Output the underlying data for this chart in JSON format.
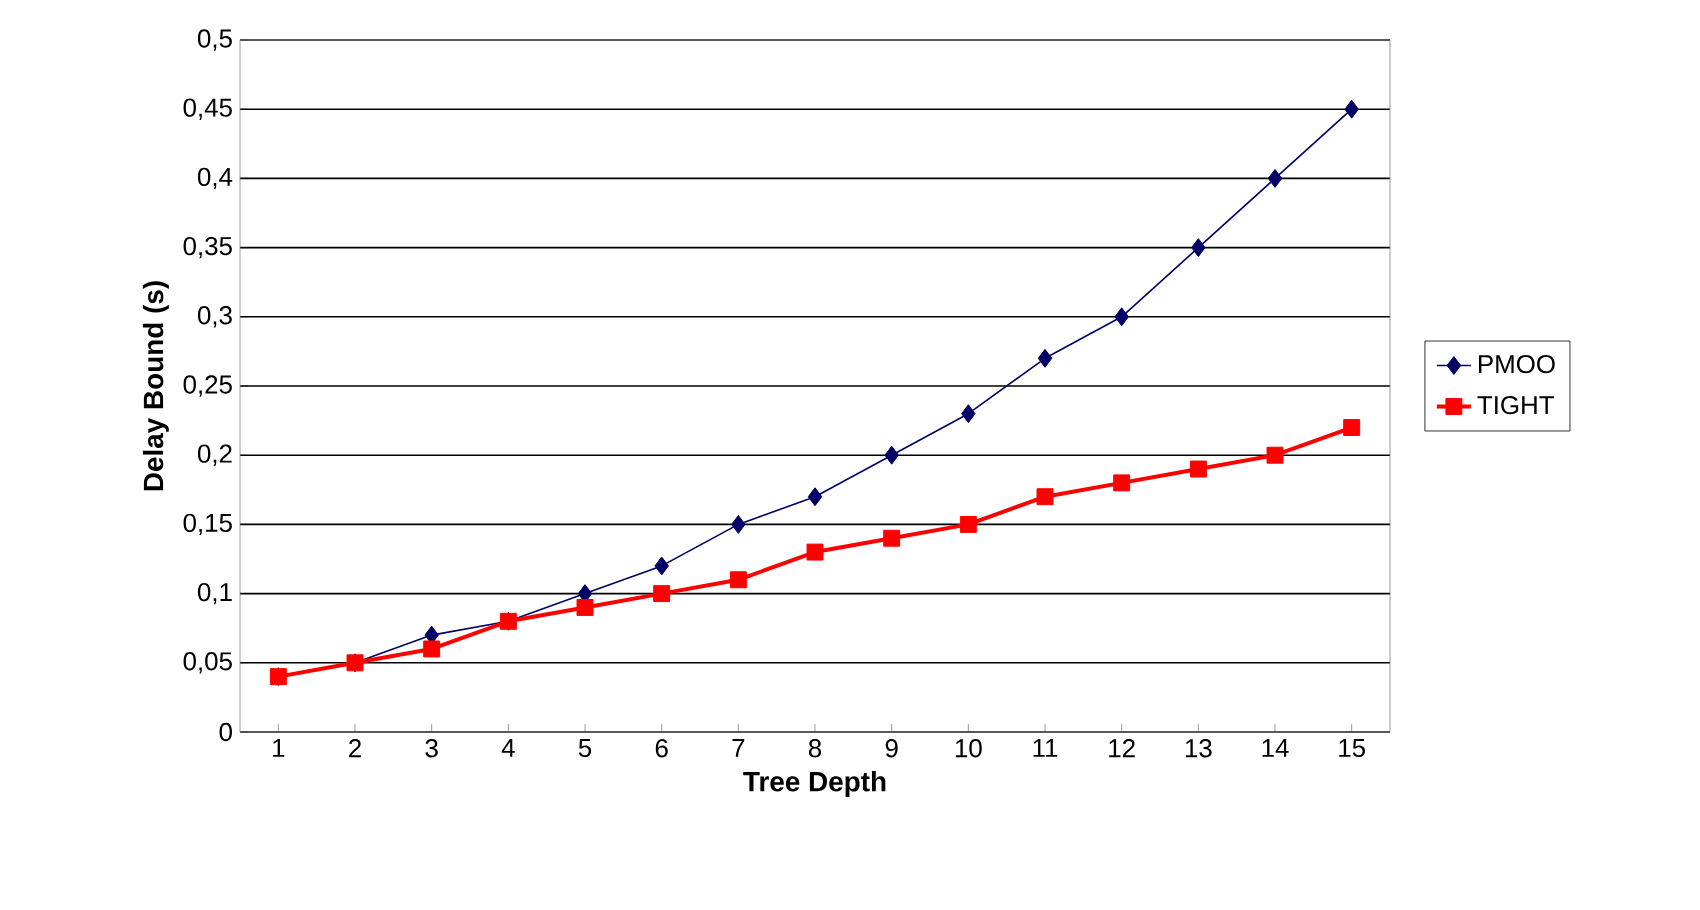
{
  "chart_data": {
    "type": "line",
    "xlabel": "Tree Depth",
    "ylabel": "Delay Bound (s)",
    "categories": [
      "1",
      "2",
      "3",
      "4",
      "5",
      "6",
      "7",
      "8",
      "9",
      "10",
      "11",
      "12",
      "13",
      "14",
      "15"
    ],
    "series": [
      {
        "name": "PMOO",
        "color": "#000066",
        "marker": "diamond",
        "values": [
          0.04,
          0.05,
          0.07,
          0.08,
          0.1,
          0.12,
          0.15,
          0.17,
          0.2,
          0.23,
          0.27,
          0.3,
          0.35,
          0.4,
          0.45
        ]
      },
      {
        "name": "TIGHT",
        "color": "#ff0000",
        "marker": "square",
        "values": [
          0.04,
          0.05,
          0.06,
          0.08,
          0.09,
          0.1,
          0.11,
          0.13,
          0.14,
          0.15,
          0.17,
          0.18,
          0.19,
          0.2,
          0.22
        ]
      }
    ],
    "ylim": [
      0,
      0.5
    ],
    "yticks": [
      0,
      {
        "value": 0.05,
        "label": "0,05"
      },
      {
        "value": 0.1,
        "label": "0,1"
      },
      {
        "value": 0.15,
        "label": "0,15"
      },
      {
        "value": 0.2,
        "label": "0,2"
      },
      {
        "value": 0.25,
        "label": "0,25"
      },
      {
        "value": 0.3,
        "label": "0,3"
      },
      {
        "value": 0.35,
        "label": "0,35"
      },
      {
        "value": 0.4,
        "label": "0,4"
      },
      {
        "value": 0.45,
        "label": "0,45"
      },
      {
        "value": 0.5,
        "label": "0,5"
      }
    ],
    "grid": "y",
    "legend": "right",
    "line_style": "solid"
  }
}
